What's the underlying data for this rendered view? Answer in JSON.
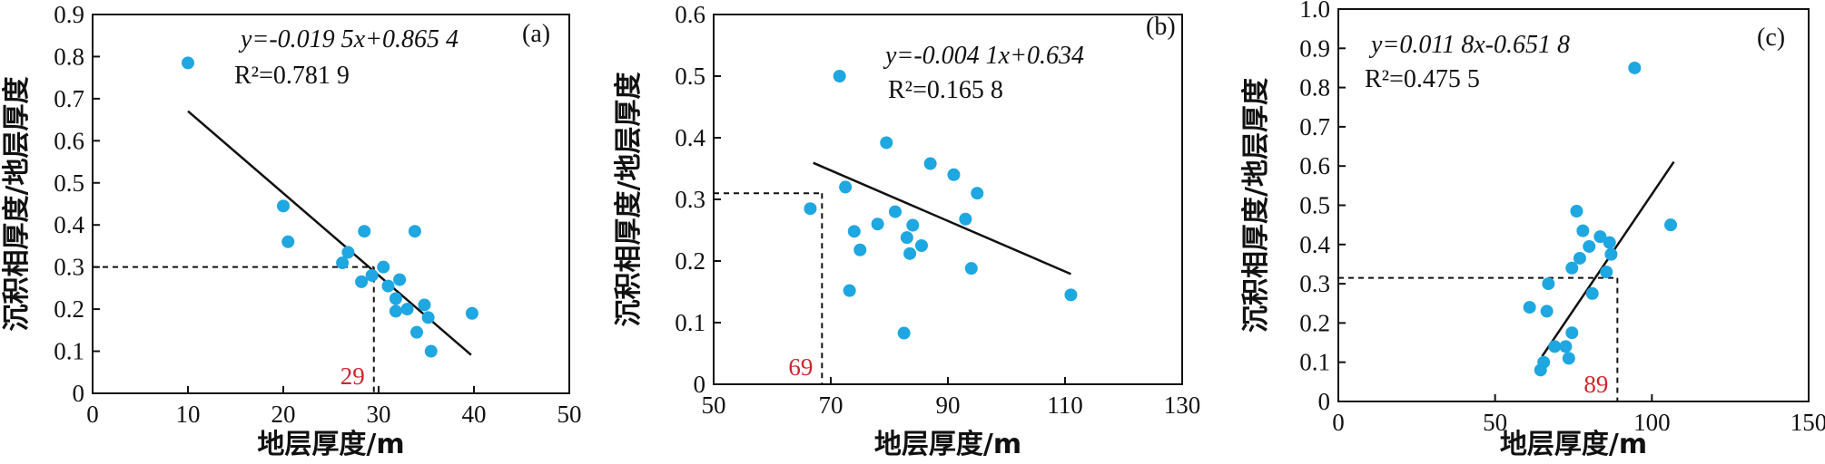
{
  "colors": {
    "point": "#1ea7e1",
    "axis": "#111111",
    "fit_line": "#111111",
    "ref_label": "#d0252b"
  },
  "chart_data": [
    {
      "type": "scatter",
      "panel_label": "(a)",
      "xlabel": "地层厚度/m",
      "ylabel": "沉积相厚度/地层厚度",
      "xlim": [
        0,
        50
      ],
      "ylim": [
        0,
        0.9
      ],
      "xticks": [
        "0",
        "10",
        "20",
        "30",
        "40",
        "50"
      ],
      "yticks": [
        "0",
        "0.1",
        "0.2",
        "0.3",
        "0.4",
        "0.5",
        "0.6",
        "0.7",
        "0.8",
        "0.9"
      ],
      "equation": "y=-0.019 5x+0.865 4",
      "r2": "R²=0.781 9",
      "fit": {
        "slope": -0.0195,
        "intercept": 0.8654,
        "x_range": [
          10,
          39.7
        ]
      },
      "reference": {
        "x": 29.5,
        "y": 0.3,
        "label": "29"
      },
      "points": [
        [
          10,
          0.785
        ],
        [
          20,
          0.445
        ],
        [
          20.5,
          0.36
        ],
        [
          26.2,
          0.31
        ],
        [
          26.8,
          0.335
        ],
        [
          28.5,
          0.385
        ],
        [
          28.2,
          0.265
        ],
        [
          29.3,
          0.28
        ],
        [
          30.5,
          0.3
        ],
        [
          31,
          0.255
        ],
        [
          32.2,
          0.27
        ],
        [
          31.8,
          0.225
        ],
        [
          31.8,
          0.195
        ],
        [
          33,
          0.2
        ],
        [
          33.8,
          0.385
        ],
        [
          34,
          0.145
        ],
        [
          34.8,
          0.21
        ],
        [
          35.2,
          0.18
        ],
        [
          35.5,
          0.1
        ],
        [
          39.8,
          0.19
        ]
      ]
    },
    {
      "type": "scatter",
      "panel_label": "(b)",
      "xlabel": "地层厚度/m",
      "ylabel": "沉积相厚度/地层厚度",
      "xlim": [
        50,
        130
      ],
      "ylim": [
        0,
        0.6
      ],
      "xticks": [
        "50",
        "70",
        "90",
        "110",
        "130"
      ],
      "yticks": [
        "0",
        "0.1",
        "0.2",
        "0.3",
        "0.4",
        "0.5",
        "0.6"
      ],
      "equation": "y=-0.004 1x+0.634",
      "r2": "R²=0.165 8",
      "fit": {
        "slope": -0.0041,
        "intercept": 0.634,
        "x_range": [
          67,
          111
        ]
      },
      "reference": {
        "x": 68.5,
        "y": 0.31,
        "label": "69"
      },
      "points": [
        [
          66.5,
          0.285
        ],
        [
          71.5,
          0.5
        ],
        [
          72.5,
          0.32
        ],
        [
          73.2,
          0.152
        ],
        [
          74,
          0.248
        ],
        [
          75,
          0.218
        ],
        [
          78,
          0.26
        ],
        [
          79.5,
          0.392
        ],
        [
          81,
          0.28
        ],
        [
          83,
          0.238
        ],
        [
          82.5,
          0.083
        ],
        [
          83.5,
          0.212
        ],
        [
          84,
          0.258
        ],
        [
          85.5,
          0.225
        ],
        [
          87,
          0.358
        ],
        [
          91,
          0.34
        ],
        [
          93,
          0.268
        ],
        [
          94,
          0.188
        ],
        [
          95,
          0.31
        ],
        [
          111,
          0.145
        ]
      ]
    },
    {
      "type": "scatter",
      "panel_label": "(c)",
      "xlabel": "地层厚度/m",
      "ylabel": "沉积相厚度/地层厚度",
      "xlim": [
        0,
        150
      ],
      "ylim": [
        0,
        1.0
      ],
      "xticks": [
        "0",
        "50",
        "100",
        "150"
      ],
      "yticks": [
        "0",
        "0.1",
        "0.2",
        "0.3",
        "0.4",
        "0.5",
        "0.6",
        "0.7",
        "0.8",
        "0.9",
        "1.0"
      ],
      "equation": "y=0.011 8x-0.651 8",
      "r2": "R²=0.475 5",
      "fit": {
        "slope": 0.0118,
        "intercept": -0.6518,
        "x_range": [
          65,
          107
        ]
      },
      "reference": {
        "x": 89,
        "y": 0.315,
        "label": "89"
      },
      "points": [
        [
          61,
          0.24
        ],
        [
          64.5,
          0.08
        ],
        [
          65.5,
          0.1
        ],
        [
          66.5,
          0.23
        ],
        [
          67,
          0.3
        ],
        [
          69,
          0.14
        ],
        [
          72.5,
          0.14
        ],
        [
          73.5,
          0.11
        ],
        [
          74.5,
          0.175
        ],
        [
          74.5,
          0.34
        ],
        [
          76,
          0.485
        ],
        [
          77,
          0.365
        ],
        [
          78,
          0.435
        ],
        [
          80,
          0.395
        ],
        [
          81,
          0.275
        ],
        [
          83.5,
          0.42
        ],
        [
          85.5,
          0.33
        ],
        [
          86.5,
          0.405
        ],
        [
          87,
          0.375
        ],
        [
          94.5,
          0.85
        ],
        [
          106,
          0.45
        ]
      ]
    }
  ]
}
